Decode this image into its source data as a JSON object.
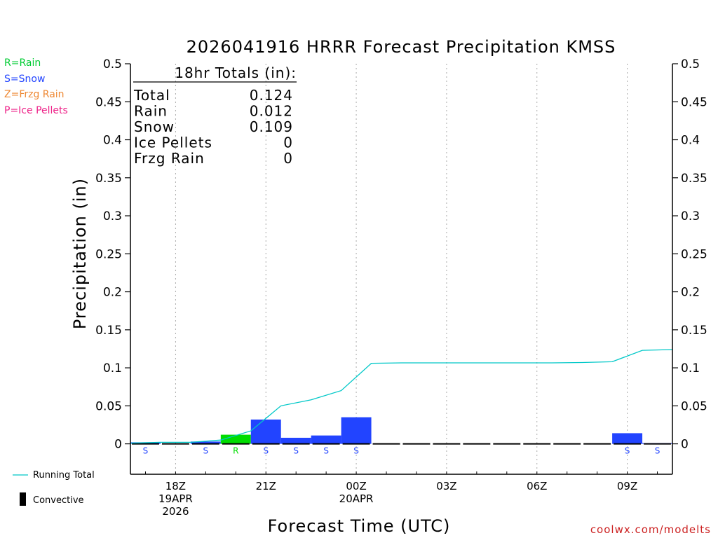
{
  "colors": {
    "rain": "#00dd00",
    "snow": "#2244ff",
    "frzg_rain": "#ee8833",
    "ice_pellets": "#ee2288",
    "running_total": "#00c8c8",
    "credit": "#cc2222"
  },
  "precip_legend": [
    {
      "label": "R=Rain",
      "color": "#00cc33"
    },
    {
      "label": "S=Snow",
      "color": "#2244ff"
    },
    {
      "label": "Z=Frzg Rain",
      "color": "#ee8833"
    },
    {
      "label": "P=Ice Pellets",
      "color": "#ee2288"
    }
  ],
  "series_legend": {
    "running_total": "Running Total",
    "convective": "Convective"
  },
  "credit": "coolwx.com/modelts",
  "totals_box": {
    "title": "18hr Totals (in):",
    "rows": [
      {
        "label": "Total",
        "value": "0.124"
      },
      {
        "label": "Rain",
        "value": "0.012"
      },
      {
        "label": "Snow",
        "value": "0.109"
      },
      {
        "label": "Ice Pellets",
        "value": "0"
      },
      {
        "label": "Frzg Rain",
        "value": "0"
      }
    ]
  },
  "chart_data": {
    "type": "bar",
    "title": "2026041916 HRRR Forecast Precipitation KMSS",
    "xlabel": "Forecast Time (UTC)",
    "ylabel": "Precipitation (in)",
    "ylim": [
      -0.04,
      0.5
    ],
    "yticks": [
      0,
      0.05,
      0.1,
      0.15,
      0.2,
      0.25,
      0.3,
      0.35,
      0.4,
      0.45,
      0.5
    ],
    "ytick_labels": [
      "0",
      "0.05",
      "0.1",
      "0.15",
      "0.2",
      "0.25",
      "0.3",
      "0.35",
      "0.4",
      "0.45",
      "0.5"
    ],
    "xlim": [
      16.5,
      34.5
    ],
    "xticks": [
      {
        "hour": 18,
        "lines": [
          "18Z",
          "19APR",
          "2026"
        ]
      },
      {
        "hour": 21,
        "lines": [
          "21Z"
        ]
      },
      {
        "hour": 24,
        "lines": [
          "00Z",
          "20APR"
        ]
      },
      {
        "hour": 27,
        "lines": [
          "03Z"
        ]
      },
      {
        "hour": 30,
        "lines": [
          "06Z"
        ]
      },
      {
        "hour": 33,
        "lines": [
          "09Z"
        ]
      }
    ],
    "grid": "vertical dotted at 3-hourly ticks",
    "bars": [
      {
        "hour": 17,
        "value": 0.002,
        "type": "S"
      },
      {
        "hour": 18,
        "value": 0.0,
        "type": ""
      },
      {
        "hour": 19,
        "value": 0.003,
        "type": "S"
      },
      {
        "hour": 20,
        "value": 0.012,
        "type": "R"
      },
      {
        "hour": 21,
        "value": 0.032,
        "type": "S"
      },
      {
        "hour": 22,
        "value": 0.008,
        "type": "S"
      },
      {
        "hour": 23,
        "value": 0.011,
        "type": "S"
      },
      {
        "hour": 24,
        "value": 0.035,
        "type": "S"
      },
      {
        "hour": 25,
        "value": 0.0,
        "type": ""
      },
      {
        "hour": 26,
        "value": 0.0,
        "type": ""
      },
      {
        "hour": 27,
        "value": 0.0,
        "type": ""
      },
      {
        "hour": 28,
        "value": 0.0,
        "type": ""
      },
      {
        "hour": 29,
        "value": 0.0,
        "type": ""
      },
      {
        "hour": 30,
        "value": 0.0,
        "type": ""
      },
      {
        "hour": 31,
        "value": 0.0,
        "type": ""
      },
      {
        "hour": 32,
        "value": 0.0,
        "type": ""
      },
      {
        "hour": 33,
        "value": 0.014,
        "type": "S"
      },
      {
        "hour": 34,
        "value": 0.001,
        "type": "S"
      }
    ],
    "running_total": {
      "x": [
        16.5,
        17.5,
        18.5,
        19.5,
        20.5,
        21.5,
        22.5,
        23.5,
        24.5,
        25.5,
        26.5,
        27.5,
        28.5,
        29.5,
        30.5,
        31.5,
        32.5,
        33.5,
        34.5
      ],
      "y": [
        0.001,
        0.002,
        0.002,
        0.005,
        0.017,
        0.05,
        0.058,
        0.07,
        0.106,
        0.1065,
        0.1065,
        0.1065,
        0.1065,
        0.1065,
        0.1065,
        0.107,
        0.108,
        0.123,
        0.124
      ]
    }
  }
}
